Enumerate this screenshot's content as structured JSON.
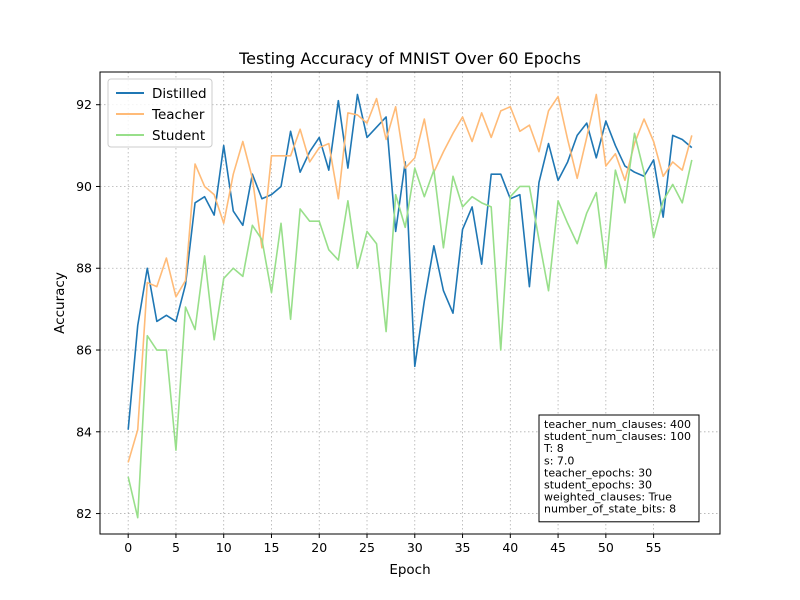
{
  "chart_data": {
    "type": "line",
    "title": "Testing Accuracy of MNIST Over 60 Epochs",
    "xlabel": "Epoch",
    "ylabel": "Accuracy",
    "xlim": [
      -2.95,
      61.95
    ],
    "ylim": [
      81.5,
      92.8
    ],
    "xticks": [
      0,
      5,
      10,
      15,
      20,
      25,
      30,
      35,
      40,
      45,
      50,
      55
    ],
    "yticks": [
      82,
      84,
      86,
      88,
      90,
      92
    ],
    "grid": true,
    "legend_position": "top-left",
    "series": [
      {
        "name": "Distilled",
        "color": "#1f77b4",
        "values": [
          84.05,
          86.6,
          88.0,
          86.7,
          86.85,
          86.7,
          87.6,
          89.6,
          89.75,
          89.3,
          91.0,
          89.4,
          89.05,
          90.3,
          89.7,
          89.8,
          90.0,
          91.35,
          90.35,
          90.85,
          91.2,
          90.4,
          92.1,
          90.45,
          92.25,
          91.2,
          91.45,
          91.7,
          88.9,
          90.6,
          85.6,
          87.2,
          88.55,
          87.45,
          86.9,
          88.95,
          89.5,
          88.1,
          90.3,
          90.3,
          89.7,
          89.8,
          87.55,
          90.1,
          91.05,
          90.15,
          90.6,
          91.25,
          91.55,
          90.7,
          91.6,
          91.0,
          90.5,
          90.35,
          90.25,
          90.65,
          89.25,
          91.25,
          91.15,
          90.95
        ]
      },
      {
        "name": "Teacher",
        "color": "#ffbb78",
        "values": [
          83.25,
          84.05,
          87.65,
          87.55,
          88.25,
          87.3,
          87.7,
          90.55,
          90.0,
          89.8,
          89.1,
          90.3,
          91.1,
          90.2,
          88.5,
          90.75,
          90.75,
          90.75,
          91.4,
          90.6,
          90.95,
          91.05,
          89.7,
          91.8,
          91.75,
          91.55,
          92.15,
          91.15,
          91.95,
          90.45,
          90.7,
          91.65,
          90.35,
          90.85,
          91.3,
          91.7,
          91.1,
          91.8,
          91.2,
          91.85,
          91.95,
          91.35,
          91.5,
          90.85,
          91.85,
          92.2,
          91.15,
          90.2,
          91.2,
          92.25,
          90.5,
          90.8,
          90.15,
          91.05,
          91.65,
          91.1,
          90.25,
          90.6,
          90.4,
          91.25
        ]
      },
      {
        "name": "Student",
        "color": "#98df8a",
        "values": [
          82.9,
          81.9,
          86.35,
          86.0,
          86.0,
          83.55,
          87.05,
          86.5,
          88.3,
          86.25,
          87.75,
          88.0,
          87.8,
          89.05,
          88.7,
          87.4,
          89.1,
          86.75,
          89.45,
          89.15,
          89.15,
          88.45,
          88.2,
          89.65,
          88.0,
          88.9,
          88.6,
          86.45,
          89.8,
          89.0,
          90.45,
          89.75,
          90.4,
          88.5,
          90.25,
          89.5,
          89.75,
          89.6,
          89.5,
          86.0,
          89.75,
          90.0,
          90.0,
          88.7,
          87.45,
          89.65,
          89.1,
          88.6,
          89.35,
          89.85,
          88.0,
          90.4,
          89.6,
          91.3,
          90.35,
          88.75,
          89.65,
          90.05,
          89.6,
          90.65
        ]
      }
    ],
    "annotation": {
      "position": "bottom-right",
      "lines": [
        "teacher_num_clauses: 400",
        "student_num_clauses: 100",
        "T: 8",
        "s: 7.0",
        "teacher_epochs: 30",
        "student_epochs: 30",
        "weighted_clauses: True",
        "number_of_state_bits: 8"
      ]
    }
  }
}
